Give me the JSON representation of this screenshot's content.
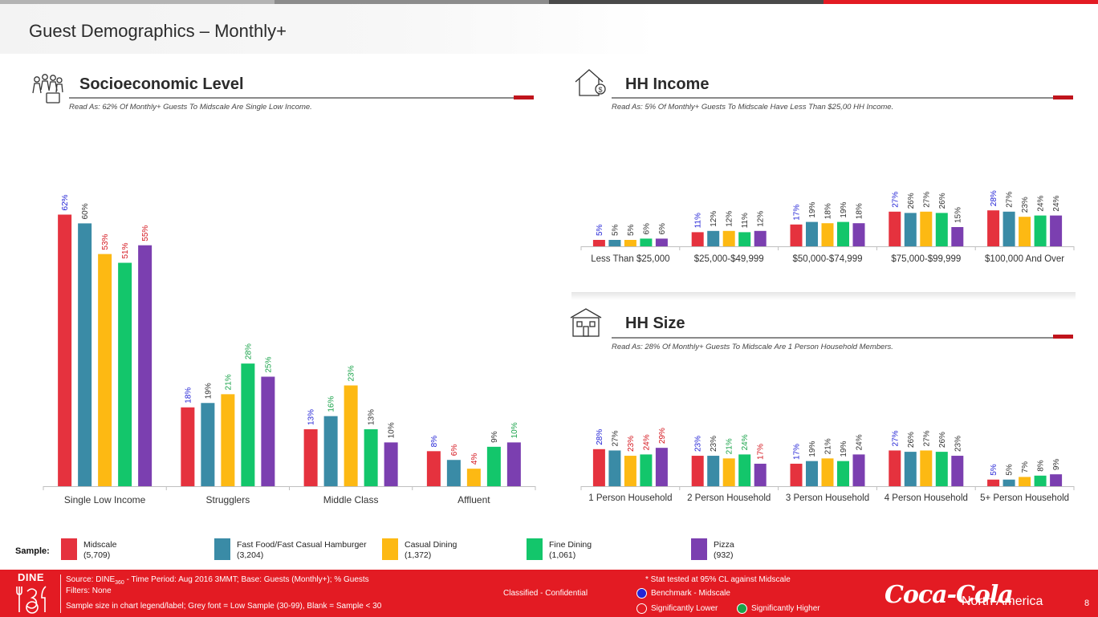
{
  "page": {
    "title": "Guest Demographics – Monthly+",
    "page_number": "8"
  },
  "topbar_colors": [
    "#b3b3b3",
    "#8c8c8c",
    "#4a4a4a",
    "#e31b23"
  ],
  "socio": {
    "title": "Socioeconomic Level",
    "read_as": "Read As: 62% Of Monthly+ Guests To Midscale Are Single Low Income."
  },
  "income": {
    "title": "HH Income",
    "read_as": "Read As: 5% Of Monthly+ Guests To Midscale Have Less Than $25,00 HH Income."
  },
  "size": {
    "title": "HH Size",
    "read_as": "Read As: 28% Of Monthly+ Guests To Midscale Are 1 Person Household Members."
  },
  "legend": {
    "label": "Sample:",
    "items": [
      {
        "name": "Midscale",
        "n": "(5,709)",
        "color": "#e5323e"
      },
      {
        "name": "Fast Food/Fast Casual Hamburger",
        "n": "(3,204)",
        "color": "#3a8ba6"
      },
      {
        "name": "Casual Dining",
        "n": "(1,372)",
        "color": "#fdb913"
      },
      {
        "name": "Fine Dining",
        "n": "(1,061)",
        "color": "#13c66b"
      },
      {
        "name": "Pizza",
        "n": "(932)",
        "color": "#7b3fb0"
      }
    ]
  },
  "sig_colors": {
    "benchmark": "#2424d6",
    "higher": "#1aa34a",
    "lower": "#d4141c",
    "neutral": "#333333"
  },
  "chart_data": [
    {
      "id": "socio",
      "type": "bar",
      "categories": [
        "Single Low Income",
        "Strugglers",
        "Middle Class",
        "Affluent"
      ],
      "ylim": [
        0,
        100
      ],
      "series": [
        {
          "name": "Midscale",
          "values": [
            62,
            18,
            13,
            8
          ]
        },
        {
          "name": "Fast Food/Fast Casual Hamburger",
          "values": [
            60,
            19,
            16,
            6
          ]
        },
        {
          "name": "Casual Dining",
          "values": [
            53,
            21,
            23,
            4
          ]
        },
        {
          "name": "Fine Dining",
          "values": [
            51,
            28,
            13,
            9
          ]
        },
        {
          "name": "Pizza",
          "values": [
            55,
            25,
            10,
            10
          ]
        }
      ],
      "labels": [
        [
          "62%",
          "60%",
          "53%",
          "51%",
          "55%"
        ],
        [
          "18%",
          "19%",
          "21%",
          "28%",
          "25%"
        ],
        [
          "13%",
          "16%",
          "23%",
          "13%",
          "10%"
        ],
        [
          "8%",
          "6%",
          "4%",
          "9%",
          "10%"
        ]
      ],
      "sig": [
        [
          "benchmark",
          "neutral",
          "lower",
          "lower",
          "lower"
        ],
        [
          "benchmark",
          "neutral",
          "higher",
          "higher",
          "higher"
        ],
        [
          "benchmark",
          "higher",
          "higher",
          "neutral",
          "neutral"
        ],
        [
          "benchmark",
          "lower",
          "lower",
          "neutral",
          "higher"
        ]
      ]
    },
    {
      "id": "income",
      "type": "bar",
      "categories": [
        "Less Than $25,000",
        "$25,000-$49,999",
        "$50,000-$74,999",
        "$75,000-$99,999",
        "$100,000 And Over"
      ],
      "ylim": [
        0,
        100
      ],
      "series": [
        {
          "name": "Midscale",
          "values": [
            5,
            11,
            17,
            27,
            28
          ]
        },
        {
          "name": "Fast Food/Fast Casual Hamburger",
          "values": [
            5,
            12,
            19,
            26,
            27
          ]
        },
        {
          "name": "Casual Dining",
          "values": [
            5,
            12,
            18,
            27,
            23
          ]
        },
        {
          "name": "Fine Dining",
          "values": [
            6,
            11,
            19,
            26,
            24
          ]
        },
        {
          "name": "Pizza",
          "values": [
            6,
            12,
            18,
            15,
            24
          ]
        }
      ],
      "labels": [
        [
          "5%",
          "5%",
          "5%",
          "6%",
          "6%"
        ],
        [
          "11%",
          "12%",
          "12%",
          "11%",
          "12%"
        ],
        [
          "17%",
          "19%",
          "18%",
          "19%",
          "18%"
        ],
        [
          "27%",
          "26%",
          "27%",
          "26%",
          "15%"
        ],
        [
          "28%",
          "27%",
          "23%",
          "24%",
          "24%"
        ]
      ],
      "sig": [
        [
          "benchmark",
          "neutral",
          "neutral",
          "neutral",
          "neutral"
        ],
        [
          "benchmark",
          "neutral",
          "neutral",
          "neutral",
          "neutral"
        ],
        [
          "benchmark",
          "neutral",
          "neutral",
          "neutral",
          "neutral"
        ],
        [
          "benchmark",
          "neutral",
          "neutral",
          "neutral",
          "neutral"
        ],
        [
          "benchmark",
          "neutral",
          "neutral",
          "neutral",
          "neutral"
        ]
      ]
    },
    {
      "id": "size",
      "type": "bar",
      "categories": [
        "1 Person Household",
        "2 Person Household",
        "3 Person Household",
        "4 Person Household",
        "5+ Person Household"
      ],
      "ylim": [
        0,
        100
      ],
      "series": [
        {
          "name": "Midscale",
          "values": [
            28,
            23,
            17,
            27,
            5
          ]
        },
        {
          "name": "Fast Food/Fast Casual Hamburger",
          "values": [
            27,
            23,
            19,
            26,
            5
          ]
        },
        {
          "name": "Casual Dining",
          "values": [
            23,
            21,
            21,
            27,
            7
          ]
        },
        {
          "name": "Fine Dining",
          "values": [
            24,
            24,
            19,
            26,
            8
          ]
        },
        {
          "name": "Pizza",
          "values": [
            29,
            17,
            24,
            23,
            9
          ]
        }
      ],
      "labels": [
        [
          "28%",
          "27%",
          "23%",
          "24%",
          "29%"
        ],
        [
          "23%",
          "23%",
          "21%",
          "24%",
          "17%"
        ],
        [
          "17%",
          "19%",
          "21%",
          "19%",
          "24%"
        ],
        [
          "27%",
          "26%",
          "27%",
          "26%",
          "23%"
        ],
        [
          "5%",
          "5%",
          "7%",
          "8%",
          "9%"
        ]
      ],
      "sig": [
        [
          "benchmark",
          "neutral",
          "lower",
          "lower",
          "lower"
        ],
        [
          "benchmark",
          "neutral",
          "higher",
          "higher",
          "lower"
        ],
        [
          "benchmark",
          "neutral",
          "neutral",
          "neutral",
          "neutral"
        ],
        [
          "benchmark",
          "neutral",
          "neutral",
          "neutral",
          "neutral"
        ],
        [
          "benchmark",
          "neutral",
          "neutral",
          "neutral",
          "neutral"
        ]
      ]
    }
  ],
  "footer": {
    "logo_text": "DINE",
    "source_prefix": "Source: DINE",
    "source_sub": "360",
    "source_rest": " - Time Period: Aug 2016 3MMT; Base: Guests (Monthly+); % Guests",
    "filters": "Filters: None",
    "sample_note": "Sample size in chart legend/label;  Grey font = Low Sample (30-99), Blank = Sample < 30",
    "classification": "Classified - Confidential",
    "stat_note": "* Stat tested at 95% CL against Midscale",
    "benchmark": "Benchmark - Midscale",
    "lower": "Significantly Lower",
    "higher": "Significantly Higher",
    "brand": "Coca-Cola",
    "region": "North America",
    "circle_colors": {
      "benchmark": "#2424d6",
      "lower": "#e31b23",
      "higher": "#1aa34a"
    }
  }
}
